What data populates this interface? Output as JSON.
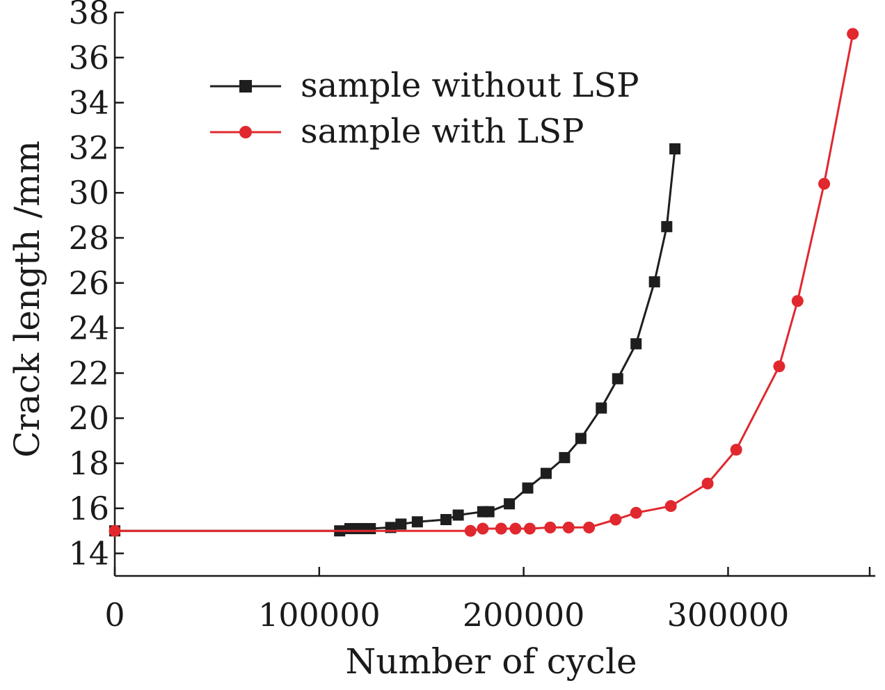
{
  "chart_data": {
    "type": "line",
    "title": "",
    "xlabel": "Number of cycle",
    "ylabel": "Crack length /mm",
    "xlim": [
      0,
      372000
    ],
    "ylim": [
      13,
      38
    ],
    "xticks": [
      0,
      100000,
      200000,
      300000
    ],
    "xtick_labels": [
      "0",
      "100000",
      "200000",
      "300000"
    ],
    "yticks": [
      14,
      16,
      18,
      20,
      22,
      24,
      26,
      28,
      30,
      32,
      34,
      36,
      38
    ],
    "ytick_labels": [
      "14",
      "16",
      "18",
      "20",
      "22",
      "24",
      "26",
      "28",
      "30",
      "32",
      "34",
      "36",
      "38"
    ],
    "grid": false,
    "legend_position": "top-center",
    "series": [
      {
        "name": "sample without LSP",
        "color": "#1e1e1e",
        "marker": "square",
        "points": [
          [
            0,
            15.0
          ],
          [
            110000,
            15.0
          ],
          [
            115000,
            15.1
          ],
          [
            120000,
            15.1
          ],
          [
            125000,
            15.1
          ],
          [
            135000,
            15.15
          ],
          [
            140000,
            15.3
          ],
          [
            148000,
            15.4
          ],
          [
            162000,
            15.5
          ],
          [
            168000,
            15.7
          ],
          [
            180000,
            15.85
          ],
          [
            183000,
            15.85
          ],
          [
            193000,
            16.2
          ],
          [
            202000,
            16.9
          ],
          [
            211000,
            17.55
          ],
          [
            220000,
            18.25
          ],
          [
            228000,
            19.1
          ],
          [
            238000,
            20.45
          ],
          [
            246000,
            21.75
          ],
          [
            255000,
            23.3
          ],
          [
            264000,
            26.05
          ],
          [
            270000,
            28.5
          ],
          [
            274000,
            31.95
          ]
        ]
      },
      {
        "name": "sample with LSP",
        "color": "#e0282e",
        "marker": "circle",
        "points": [
          [
            0,
            15.0
          ],
          [
            174000,
            15.0
          ],
          [
            180000,
            15.1
          ],
          [
            189000,
            15.1
          ],
          [
            196000,
            15.1
          ],
          [
            203000,
            15.1
          ],
          [
            213000,
            15.15
          ],
          [
            222000,
            15.15
          ],
          [
            232000,
            15.15
          ],
          [
            245000,
            15.5
          ],
          [
            255000,
            15.8
          ],
          [
            272000,
            16.1
          ],
          [
            290000,
            17.1
          ],
          [
            304000,
            18.6
          ],
          [
            325000,
            22.3
          ],
          [
            334000,
            25.2
          ],
          [
            347000,
            30.4
          ],
          [
            361000,
            37.05
          ]
        ]
      }
    ]
  }
}
